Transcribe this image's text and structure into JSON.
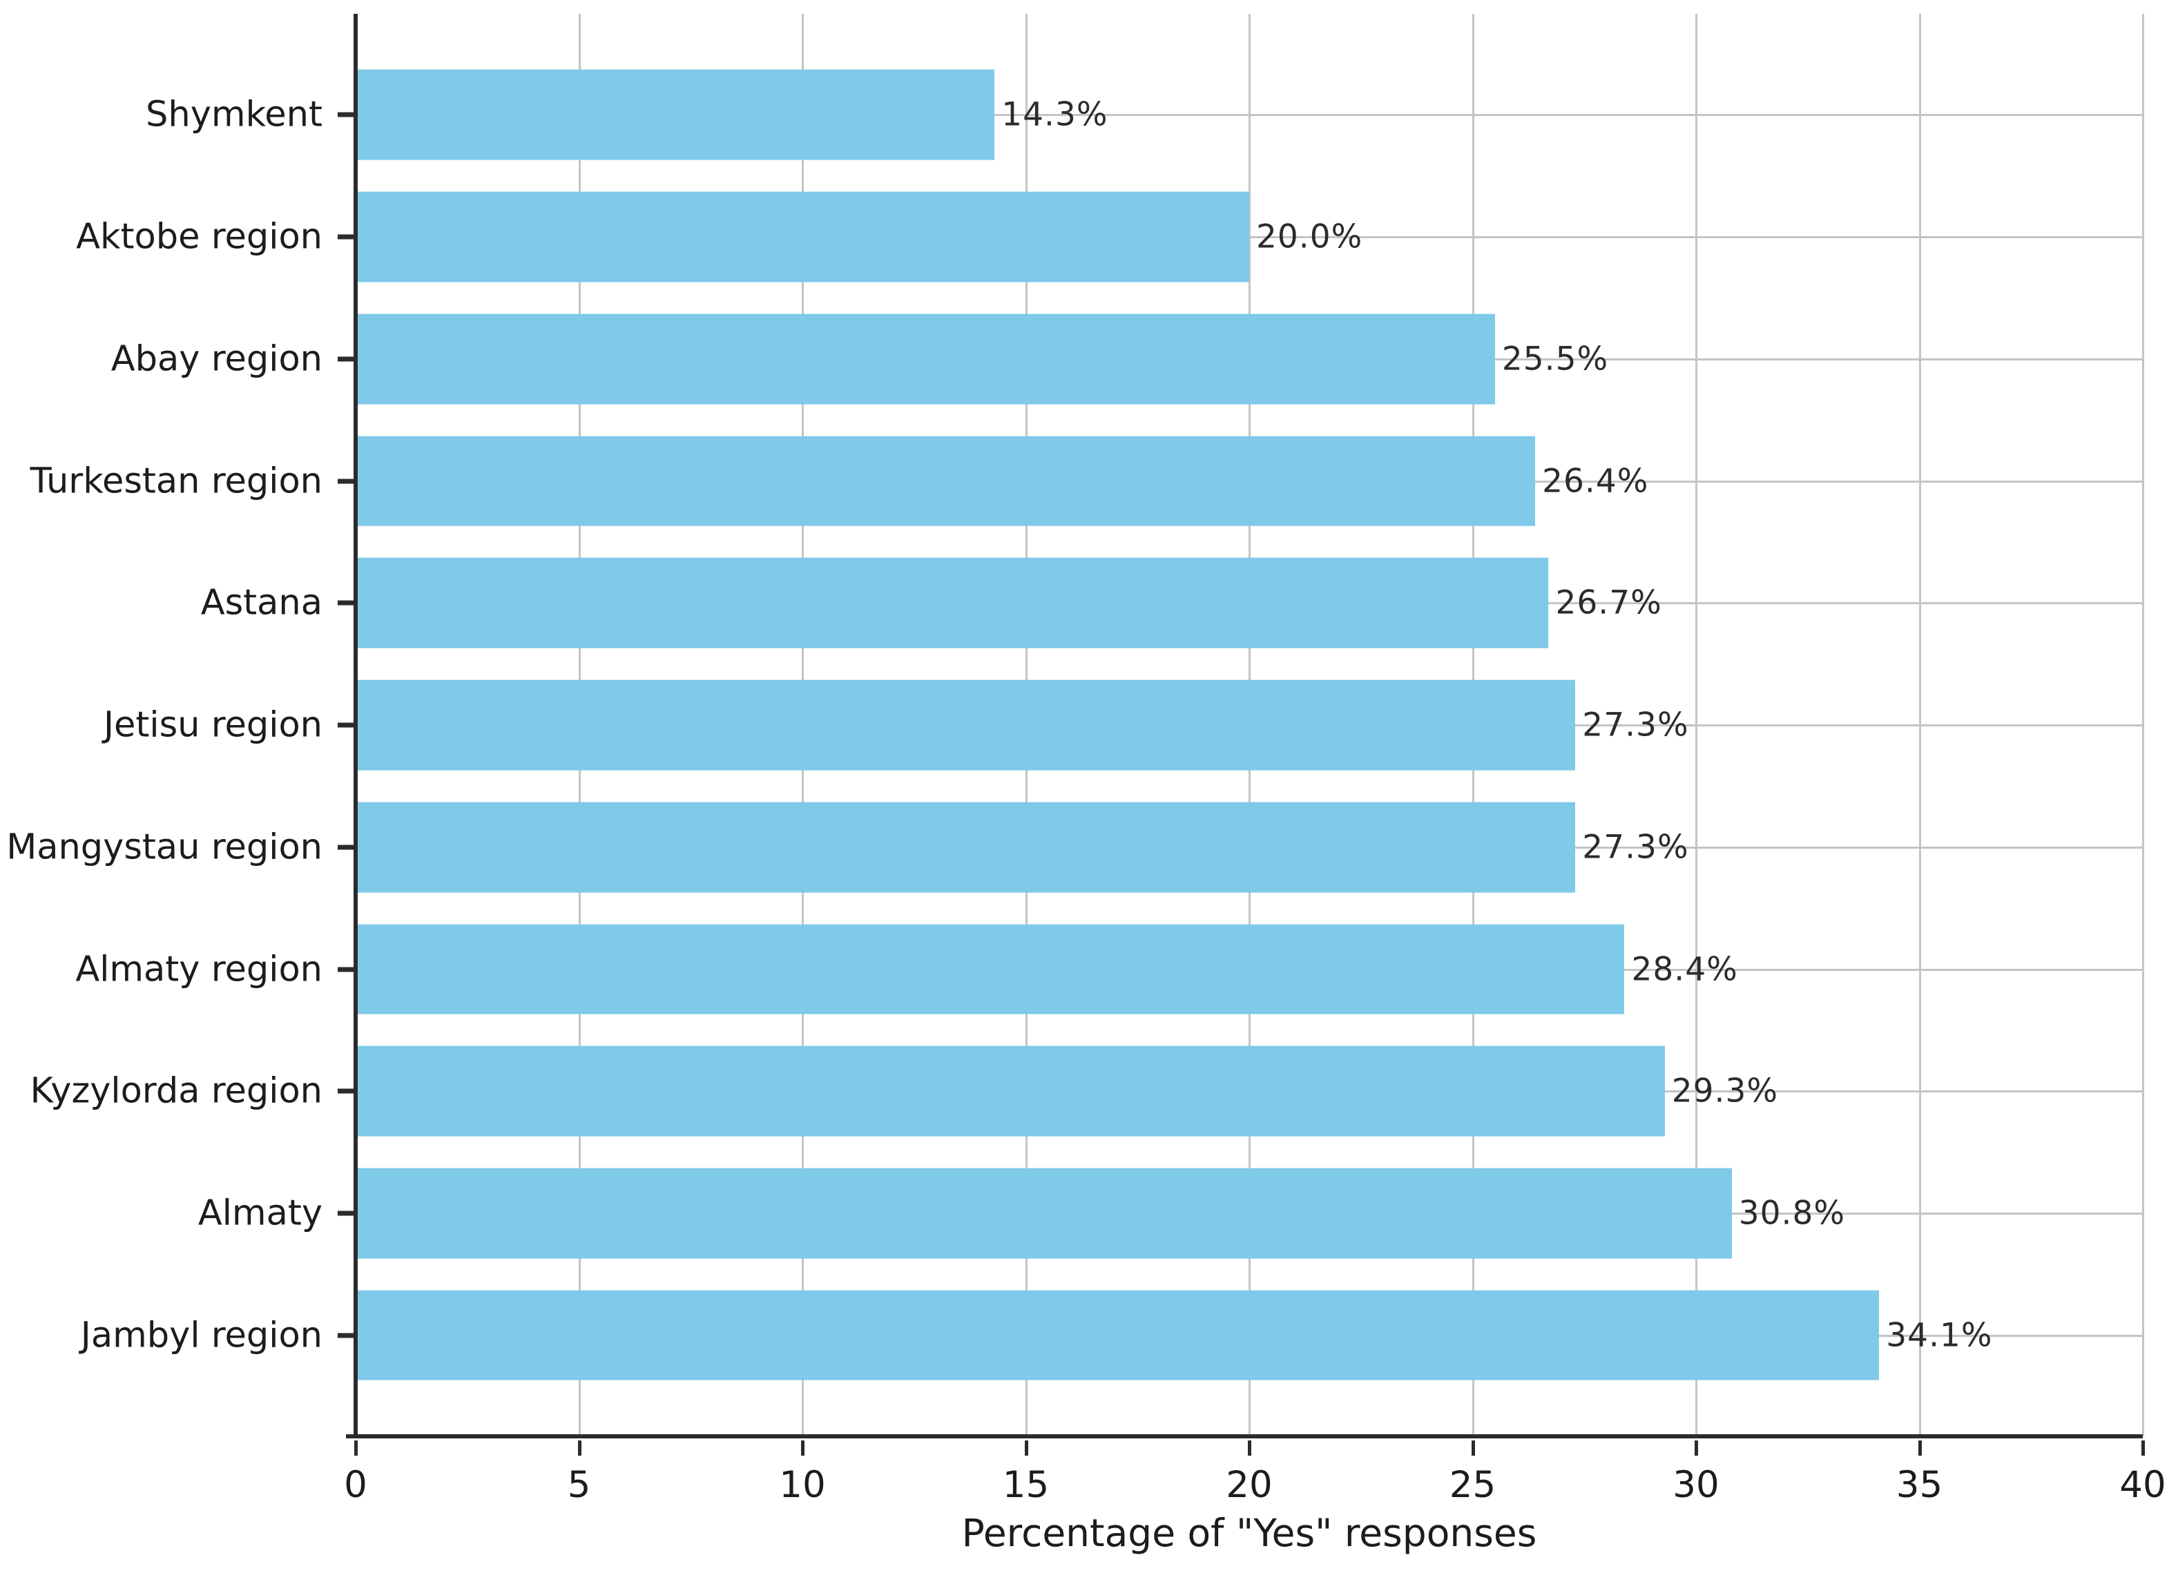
{
  "chart_data": {
    "type": "bar",
    "orientation": "horizontal",
    "title": "",
    "xlabel": "Percentage of \"Yes\" responses",
    "ylabel": "",
    "categories": [
      "Shymkent",
      "Aktobe region",
      "Abay region",
      "Turkestan region",
      "Astana",
      "Jetisu region",
      "Mangystau region",
      "Almaty region",
      "Kyzylorda region",
      "Almaty",
      "Jambyl region"
    ],
    "values": [
      14.3,
      20.0,
      25.5,
      26.4,
      26.7,
      27.3,
      27.3,
      28.4,
      29.3,
      30.8,
      34.1
    ],
    "value_labels": [
      "14.3%",
      "20.0%",
      "25.5%",
      "26.4%",
      "26.7%",
      "27.3%",
      "27.3%",
      "28.4%",
      "29.3%",
      "30.8%",
      "34.1%"
    ],
    "xlim": [
      0,
      40
    ],
    "xticks": [
      0,
      5,
      10,
      15,
      20,
      25,
      30,
      35,
      40
    ],
    "xtick_labels": [
      "0",
      "5",
      "10",
      "15",
      "20",
      "25",
      "30",
      "35",
      "40"
    ],
    "grid": "on",
    "legend": "none",
    "bar_color": "#7fc9e9",
    "grid_color": "#c4c4c4",
    "spine_color": "#2b2b2b",
    "text_color": "#1c1c1c",
    "background_color": "#ffffff"
  }
}
